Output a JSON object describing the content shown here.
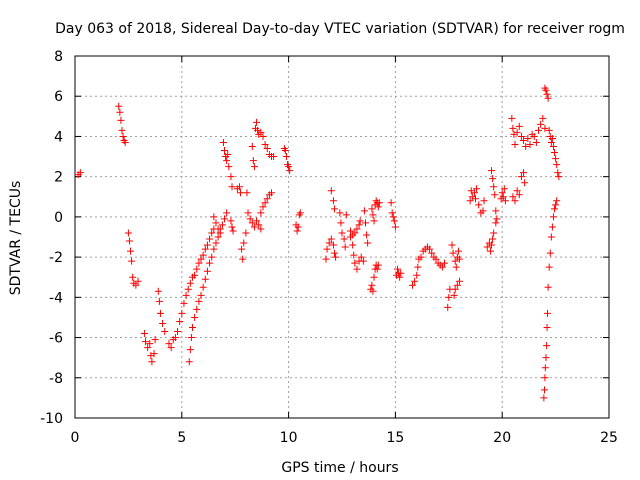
{
  "chart_data": {
    "type": "scatter",
    "title": "Day 063 of 2018, Sidereal Day-to-day VTEC variation (SDTVAR) for receiver rogm",
    "xlabel": "GPS time / hours",
    "ylabel": "SDTVAR / TECUs",
    "xlim": [
      0,
      25
    ],
    "ylim": [
      -10,
      8
    ],
    "xticks": [
      0,
      5,
      10,
      15,
      20,
      25
    ],
    "yticks": [
      -10,
      -8,
      -6,
      -4,
      -2,
      0,
      2,
      4,
      6,
      8
    ],
    "grid": true,
    "marker": "+",
    "color": "#ff0000",
    "segments": [
      [
        [
          0.15,
          2.1
        ],
        [
          0.25,
          2.2
        ]
      ],
      [
        [
          2.05,
          5.5
        ],
        [
          2.1,
          5.2
        ],
        [
          2.15,
          4.8
        ],
        [
          2.2,
          4.3
        ],
        [
          2.25,
          4.0
        ],
        [
          2.3,
          3.8
        ],
        [
          2.35,
          3.7
        ]
      ],
      [
        [
          2.5,
          -0.8
        ],
        [
          2.55,
          -1.2
        ],
        [
          2.6,
          -1.7
        ],
        [
          2.65,
          -2.2
        ],
        [
          2.7,
          -3.0
        ],
        [
          2.75,
          -3.3
        ],
        [
          2.85,
          -3.4
        ],
        [
          2.95,
          -3.2
        ]
      ],
      [
        [
          3.25,
          -5.8
        ],
        [
          3.3,
          -6.2
        ],
        [
          3.4,
          -6.5
        ],
        [
          3.5,
          -6.3
        ],
        [
          3.55,
          -6.9
        ],
        [
          3.6,
          -7.2
        ],
        [
          3.7,
          -6.8
        ],
        [
          3.75,
          -6.1
        ]
      ],
      [
        [
          3.9,
          -3.7
        ],
        [
          3.95,
          -4.2
        ],
        [
          4.0,
          -4.8
        ],
        [
          4.1,
          -5.3
        ],
        [
          4.2,
          -5.7
        ]
      ],
      [
        [
          4.4,
          -6.3
        ],
        [
          4.5,
          -6.5
        ],
        [
          4.6,
          -6.1
        ],
        [
          4.7,
          -6.0
        ],
        [
          4.8,
          -5.7
        ],
        [
          4.9,
          -5.2
        ],
        [
          5.0,
          -4.8
        ],
        [
          5.1,
          -4.3
        ],
        [
          5.2,
          -3.9
        ],
        [
          5.3,
          -3.6
        ],
        [
          5.4,
          -3.3
        ],
        [
          5.5,
          -3.0
        ],
        [
          5.6,
          -2.9
        ],
        [
          5.7,
          -2.6
        ],
        [
          5.8,
          -2.3
        ],
        [
          5.9,
          -2.1
        ],
        [
          6.0,
          -1.9
        ],
        [
          6.1,
          -1.6
        ],
        [
          6.2,
          -1.4
        ],
        [
          6.3,
          -1.1
        ],
        [
          6.4,
          -0.8
        ],
        [
          6.5,
          -0.6
        ]
      ],
      [
        [
          5.35,
          -7.2
        ],
        [
          5.4,
          -6.6
        ],
        [
          5.45,
          -6.0
        ],
        [
          5.5,
          -5.5
        ],
        [
          5.6,
          -5.0
        ],
        [
          5.7,
          -4.6
        ],
        [
          5.8,
          -4.2
        ],
        [
          5.9,
          -3.9
        ],
        [
          6.0,
          -3.5
        ],
        [
          6.1,
          -3.1
        ],
        [
          6.2,
          -2.7
        ],
        [
          6.3,
          -2.3
        ],
        [
          6.4,
          -2.0
        ],
        [
          6.5,
          -1.6
        ],
        [
          6.6,
          -1.3
        ],
        [
          6.7,
          -1.0
        ],
        [
          6.8,
          -0.6
        ],
        [
          6.9,
          -0.4
        ],
        [
          7.0,
          -0.1
        ],
        [
          7.1,
          0.2
        ]
      ],
      [
        [
          6.5,
          0.0
        ],
        [
          6.6,
          -0.3
        ],
        [
          6.7,
          -0.6
        ],
        [
          6.8,
          -0.8
        ]
      ],
      [
        [
          6.95,
          3.7
        ],
        [
          7.0,
          3.3
        ],
        [
          7.05,
          3.0
        ],
        [
          7.1,
          2.8
        ],
        [
          7.15,
          3.1
        ],
        [
          7.2,
          2.5
        ],
        [
          7.3,
          2.0
        ],
        [
          7.35,
          1.5
        ]
      ],
      [
        [
          7.3,
          -0.2
        ],
        [
          7.35,
          -0.5
        ],
        [
          7.4,
          -0.7
        ]
      ],
      [
        [
          7.6,
          1.4
        ],
        [
          7.7,
          1.5
        ],
        [
          7.75,
          1.2
        ],
        [
          7.8,
          -1.6
        ],
        [
          7.85,
          -2.1
        ],
        [
          7.9,
          -1.3
        ],
        [
          8.0,
          -0.8
        ],
        [
          8.05,
          1.2
        ]
      ],
      [
        [
          8.1,
          0.2
        ],
        [
          8.2,
          -0.1
        ],
        [
          8.3,
          -0.3
        ],
        [
          8.4,
          -0.5
        ],
        [
          8.5,
          -0.2
        ],
        [
          8.6,
          -0.4
        ],
        [
          8.7,
          -0.6
        ]
      ],
      [
        [
          8.3,
          3.5
        ],
        [
          8.35,
          2.8
        ],
        [
          8.4,
          2.5
        ],
        [
          8.45,
          4.4
        ],
        [
          8.5,
          4.7
        ],
        [
          8.55,
          4.3
        ],
        [
          8.6,
          4.1
        ],
        [
          8.7,
          4.2
        ],
        [
          8.8,
          4.0
        ],
        [
          8.9,
          3.6
        ],
        [
          9.0,
          3.4
        ],
        [
          9.1,
          3.1
        ],
        [
          9.2,
          3.0
        ],
        [
          9.3,
          3.0
        ]
      ],
      [
        [
          8.7,
          0.2
        ],
        [
          8.8,
          0.5
        ],
        [
          8.9,
          0.7
        ],
        [
          9.0,
          0.9
        ],
        [
          9.1,
          1.1
        ],
        [
          9.2,
          1.2
        ]
      ],
      [
        [
          9.8,
          3.4
        ],
        [
          9.85,
          3.3
        ],
        [
          9.9,
          3.0
        ],
        [
          9.95,
          2.6
        ],
        [
          10.0,
          2.5
        ],
        [
          10.05,
          2.3
        ]
      ],
      [
        [
          10.35,
          -0.4
        ],
        [
          10.4,
          -0.7
        ],
        [
          10.45,
          -0.5
        ],
        [
          10.5,
          0.1
        ],
        [
          10.55,
          0.2
        ]
      ],
      [
        [
          11.75,
          -2.1
        ],
        [
          11.8,
          -1.6
        ],
        [
          11.9,
          -1.3
        ],
        [
          12.0,
          -1.1
        ],
        [
          12.1,
          -1.4
        ],
        [
          12.15,
          -1.8
        ],
        [
          12.2,
          -2.0
        ]
      ],
      [
        [
          12.0,
          1.3
        ],
        [
          12.1,
          0.8
        ],
        [
          12.15,
          0.4
        ]
      ],
      [
        [
          12.4,
          0.2
        ],
        [
          12.45,
          -0.3
        ],
        [
          12.5,
          -0.8
        ],
        [
          12.6,
          -1.1
        ],
        [
          12.65,
          -1.5
        ],
        [
          12.7,
          0.1
        ]
      ],
      [
        [
          12.9,
          -1.0
        ],
        [
          13.0,
          -1.4
        ],
        [
          13.05,
          -1.9
        ],
        [
          13.1,
          -2.3
        ],
        [
          13.2,
          -2.6
        ],
        [
          13.3,
          -2.2
        ],
        [
          13.4,
          -2.0
        ],
        [
          13.5,
          -2.2
        ]
      ],
      [
        [
          12.9,
          -0.7
        ],
        [
          13.0,
          -0.9
        ],
        [
          13.1,
          -0.8
        ],
        [
          13.2,
          -0.6
        ],
        [
          13.3,
          -0.4
        ],
        [
          13.35,
          -0.2
        ]
      ],
      [
        [
          13.55,
          0.3
        ],
        [
          13.6,
          -0.3
        ],
        [
          13.65,
          -0.9
        ],
        [
          13.7,
          -1.3
        ]
      ],
      [
        [
          13.85,
          -3.6
        ],
        [
          13.9,
          -3.4
        ],
        [
          13.95,
          -3.7
        ],
        [
          14.0,
          -3.0
        ],
        [
          14.05,
          -2.6
        ],
        [
          14.1,
          -2.4
        ],
        [
          14.15,
          -2.6
        ],
        [
          14.2,
          -2.4
        ]
      ],
      [
        [
          13.9,
          0.4
        ],
        [
          13.95,
          0.1
        ],
        [
          14.0,
          -0.2
        ],
        [
          14.05,
          0.6
        ],
        [
          14.1,
          0.8
        ],
        [
          14.15,
          0.7
        ],
        [
          14.2,
          0.5
        ],
        [
          14.25,
          0.7
        ]
      ],
      [
        [
          14.8,
          0.7
        ],
        [
          14.85,
          0.2
        ],
        [
          14.9,
          0.0
        ],
        [
          14.95,
          -0.2
        ],
        [
          15.0,
          -0.5
        ]
      ],
      [
        [
          15.05,
          -2.9
        ],
        [
          15.1,
          -2.6
        ],
        [
          15.15,
          -2.8
        ],
        [
          15.2,
          -3.0
        ],
        [
          15.25,
          -2.8
        ]
      ],
      [
        [
          15.8,
          -3.4
        ],
        [
          15.9,
          -3.2
        ],
        [
          16.0,
          -2.9
        ],
        [
          16.05,
          -2.5
        ],
        [
          16.1,
          -2.1
        ],
        [
          16.2,
          -2.0
        ],
        [
          16.3,
          -1.7
        ],
        [
          16.4,
          -1.6
        ],
        [
          16.5,
          -1.5
        ],
        [
          16.6,
          -1.6
        ],
        [
          16.7,
          -1.8
        ],
        [
          16.8,
          -2.0
        ],
        [
          16.9,
          -2.1
        ],
        [
          17.0,
          -2.3
        ],
        [
          17.1,
          -2.4
        ],
        [
          17.2,
          -2.5
        ],
        [
          17.3,
          -2.3
        ]
      ],
      [
        [
          17.45,
          -4.5
        ],
        [
          17.5,
          -4.0
        ],
        [
          17.55,
          -3.6
        ]
      ],
      [
        [
          17.65,
          -1.4
        ],
        [
          17.7,
          -1.8
        ],
        [
          17.8,
          -2.2
        ],
        [
          17.85,
          -2.5
        ],
        [
          17.9,
          -2.0
        ],
        [
          17.95,
          -1.7
        ],
        [
          18.0,
          -2.1
        ]
      ],
      [
        [
          17.75,
          -3.9
        ],
        [
          17.8,
          -3.6
        ],
        [
          17.9,
          -3.4
        ],
        [
          18.0,
          -3.2
        ]
      ],
      [
        [
          18.5,
          0.8
        ],
        [
          18.55,
          1.3
        ],
        [
          18.6,
          1.0
        ],
        [
          18.7,
          1.2
        ],
        [
          18.75,
          0.9
        ],
        [
          18.8,
          1.4
        ],
        [
          18.9,
          0.6
        ],
        [
          19.0,
          0.2
        ],
        [
          19.1,
          0.3
        ],
        [
          19.15,
          0.8
        ]
      ],
      [
        [
          19.3,
          -1.5
        ],
        [
          19.4,
          -1.3
        ],
        [
          19.45,
          -1.7
        ],
        [
          19.5,
          -1.4
        ],
        [
          19.55,
          -1.1
        ],
        [
          19.6,
          -0.8
        ],
        [
          19.7,
          -0.3
        ],
        [
          19.75,
          -0.1
        ]
      ],
      [
        [
          19.5,
          2.3
        ],
        [
          19.55,
          1.9
        ],
        [
          19.6,
          1.5
        ],
        [
          19.65,
          1.1
        ],
        [
          19.7,
          0.3
        ]
      ],
      [
        [
          19.95,
          0.9
        ],
        [
          20.0,
          1.2
        ],
        [
          20.05,
          1.0
        ],
        [
          20.1,
          1.4
        ],
        [
          20.15,
          0.8
        ]
      ],
      [
        [
          20.45,
          4.9
        ],
        [
          20.5,
          4.4
        ],
        [
          20.55,
          4.1
        ],
        [
          20.6,
          3.6
        ],
        [
          20.7,
          4.2
        ],
        [
          20.8,
          4.5
        ],
        [
          20.9,
          4.0
        ],
        [
          21.0,
          3.8
        ],
        [
          21.1,
          3.5
        ],
        [
          21.2,
          3.9
        ],
        [
          21.3,
          3.6
        ],
        [
          21.4,
          4.1
        ],
        [
          21.5,
          4.0
        ],
        [
          21.6,
          3.7
        ],
        [
          21.7,
          4.3
        ],
        [
          21.8,
          4.6
        ],
        [
          21.9,
          4.9
        ],
        [
          22.0,
          4.4
        ]
      ],
      [
        [
          20.5,
          1.0
        ],
        [
          20.6,
          0.8
        ],
        [
          20.7,
          1.3
        ],
        [
          20.8,
          1.1
        ],
        [
          20.9,
          2.0
        ],
        [
          21.0,
          2.2
        ],
        [
          21.05,
          1.7
        ]
      ],
      [
        [
          21.95,
          -9.0
        ],
        [
          21.98,
          -8.6
        ],
        [
          22.0,
          -8.0
        ],
        [
          22.02,
          -7.5
        ],
        [
          22.05,
          -7.0
        ],
        [
          22.08,
          -6.4
        ],
        [
          22.1,
          -5.5
        ],
        [
          22.12,
          -4.8
        ],
        [
          22.15,
          -3.5
        ],
        [
          22.2,
          -2.5
        ],
        [
          22.25,
          -1.8
        ],
        [
          22.3,
          -1.0
        ],
        [
          22.35,
          -0.5
        ],
        [
          22.4,
          0.0
        ],
        [
          22.45,
          0.4
        ],
        [
          22.5,
          0.6
        ],
        [
          22.55,
          0.8
        ]
      ],
      [
        [
          22.0,
          6.4
        ],
        [
          22.05,
          6.3
        ],
        [
          22.1,
          6.1
        ],
        [
          22.15,
          5.9
        ],
        [
          22.2,
          4.3
        ],
        [
          22.25,
          4.0
        ],
        [
          22.3,
          3.7
        ],
        [
          22.35,
          3.9
        ],
        [
          22.4,
          3.5
        ],
        [
          22.45,
          3.2
        ],
        [
          22.5,
          2.9
        ],
        [
          22.55,
          2.6
        ],
        [
          22.6,
          2.2
        ],
        [
          22.65,
          2.0
        ]
      ]
    ]
  }
}
